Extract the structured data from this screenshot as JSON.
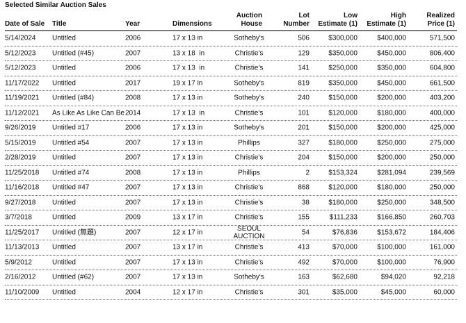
{
  "title": "Selected Similar Auction Sales",
  "headers": [
    "Date of Sale",
    "Title",
    "Year",
    "Dimensions",
    "Auction\nHouse",
    "Lot\nNumber",
    "Low\nEstimate (1)",
    "High\nEstimate (1)",
    "Realized\nPrice (1)"
  ],
  "rows": [
    [
      "5/14/2024",
      "Untitled",
      "2006",
      "17 x 13 in",
      "Sotheby's",
      "506",
      "$300,000",
      "$400,000",
      "571,500"
    ],
    [
      "5/12/2023",
      "Untitled (#45)",
      "2007",
      "13 x 18  in",
      "Christie's",
      "129",
      "$350,000",
      "$450,000",
      "806,400"
    ],
    [
      "5/12/2023",
      "Untitled",
      "2006",
      "17 x 13  in",
      "Christie's",
      "141",
      "$250,000",
      "$350,000",
      "604,800"
    ],
    [
      "11/17/2022",
      "Untitled",
      "2017",
      "19 x 17 in",
      "Sotheby's",
      "819",
      "$350,000",
      "$450,000",
      "661,500"
    ],
    [
      "11/19/2021",
      "Untitled (#84)",
      "2008",
      "17 x 13 in",
      "Sotheby's",
      "240",
      "$150,000",
      "$200,000",
      "403,200"
    ],
    [
      "11/12/2021",
      "As Like As Like Can Be",
      "2014",
      "17 x 13  in",
      "Christie's",
      "101",
      "$120,000",
      "$180,000",
      "400,000"
    ],
    [
      "9/26/2019",
      "Untitled #17",
      "2006",
      "17 x 13 in",
      "Sotheby's",
      "201",
      "$150,000",
      "$200,000",
      "425,000"
    ],
    [
      "5/15/2019",
      "Untitled #54",
      "2007",
      "17 x 13 in",
      "Phillips",
      "327",
      "$180,000",
      "$250,000",
      "275,000"
    ],
    [
      "2/28/2019",
      "Untitled",
      "2007",
      "17 x 13 in",
      "Christie's",
      "204",
      "$150,000",
      "$200,000",
      "250,000"
    ],
    [
      "11/25/2018",
      "Untitled #74",
      "2008",
      "17 x 13 in",
      "Phillips",
      "2",
      "$153,324",
      "$281,094",
      "239,569"
    ],
    [
      "11/16/2018",
      "Untitled #47",
      "2007",
      "17 x 13 in",
      "Christie's",
      "868",
      "$120,000",
      "$180,000",
      "250,000"
    ],
    [
      "9/27/2018",
      "Untitled",
      "2007",
      "17 x 13 in",
      "Christie's",
      "38",
      "$180,000",
      "$250,000",
      "348,500"
    ],
    [
      "3/7/2018",
      "Untitled",
      "2009",
      "13 x 17 in",
      "Christie's",
      "155",
      "$111,233",
      "$166,850",
      "260,703"
    ],
    [
      "11/25/2017",
      "Untitled (無題)",
      "2007",
      "12 x 17 in",
      "SEOUL\nAUCTION",
      "54",
      "$76,836",
      "$153,672",
      "184,406"
    ],
    [
      "11/13/2013",
      "Untitled",
      "2007",
      "13 x 17 in",
      "Christie's",
      "413",
      "$70,000",
      "$100,000",
      "161,000"
    ],
    [
      "5/9/2012",
      "Untitled",
      "2007",
      "17 x 13 in",
      "Christie's",
      "492",
      "$70,000",
      "$100,000",
      "76,900"
    ],
    [
      "2/16/2012",
      "Untitled (#62)",
      "2007",
      "17 x 13 in",
      "Sotheby's",
      "163",
      "$62,680",
      "$94,020",
      "92,218"
    ],
    [
      "11/10/2009",
      "Untitled",
      "2004",
      "12 x 17 in",
      "Christie's",
      "301",
      "$35,000",
      "$45,000",
      "60,000"
    ]
  ]
}
